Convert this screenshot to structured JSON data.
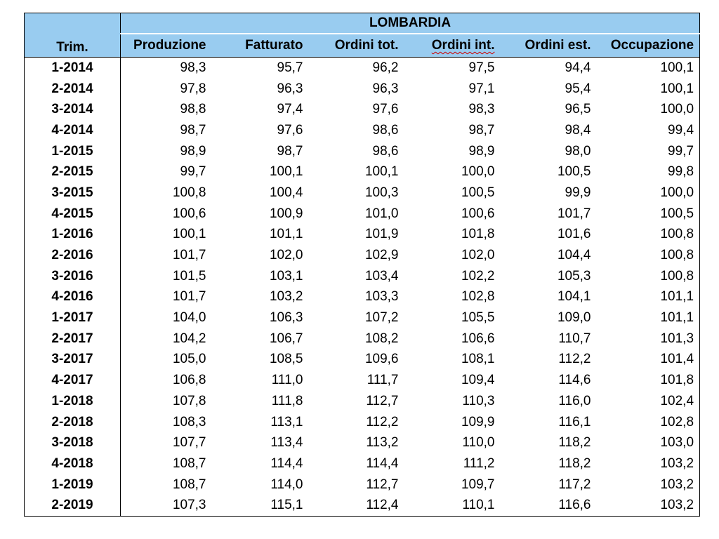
{
  "region": "LOMBARDIA",
  "columns": [
    "Trim.",
    "Produzione",
    "Fatturato",
    "Ordini tot.",
    "Ordini int.",
    "Ordini est.",
    "Occupazione"
  ],
  "rows": [
    [
      "1-2014",
      "98,3",
      "95,7",
      "96,2",
      "97,5",
      "94,4",
      "100,1"
    ],
    [
      "2-2014",
      "97,8",
      "96,3",
      "96,3",
      "97,1",
      "95,4",
      "100,1"
    ],
    [
      "3-2014",
      "98,8",
      "97,4",
      "97,6",
      "98,3",
      "96,5",
      "100,0"
    ],
    [
      "4-2014",
      "98,7",
      "97,6",
      "98,6",
      "98,7",
      "98,4",
      "99,4"
    ],
    [
      "1-2015",
      "98,9",
      "98,7",
      "98,6",
      "98,9",
      "98,0",
      "99,7"
    ],
    [
      "2-2015",
      "99,7",
      "100,1",
      "100,1",
      "100,0",
      "100,5",
      "99,8"
    ],
    [
      "3-2015",
      "100,8",
      "100,4",
      "100,3",
      "100,5",
      "99,9",
      "100,0"
    ],
    [
      "4-2015",
      "100,6",
      "100,9",
      "101,0",
      "100,6",
      "101,7",
      "100,5"
    ],
    [
      "1-2016",
      "100,1",
      "101,1",
      "101,9",
      "101,8",
      "101,6",
      "100,8"
    ],
    [
      "2-2016",
      "101,7",
      "102,0",
      "102,9",
      "102,0",
      "104,4",
      "100,8"
    ],
    [
      "3-2016",
      "101,5",
      "103,1",
      "103,4",
      "102,2",
      "105,3",
      "100,8"
    ],
    [
      "4-2016",
      "101,7",
      "103,2",
      "103,3",
      "102,8",
      "104,1",
      "101,1"
    ],
    [
      "1-2017",
      "104,0",
      "106,3",
      "107,2",
      "105,5",
      "109,0",
      "101,1"
    ],
    [
      "2-2017",
      "104,2",
      "106,7",
      "108,2",
      "106,6",
      "110,7",
      "101,3"
    ],
    [
      "3-2017",
      "105,0",
      "108,5",
      "109,6",
      "108,1",
      "112,2",
      "101,4"
    ],
    [
      "4-2017",
      "106,8",
      "111,0",
      "111,7",
      "109,4",
      "114,6",
      "101,8"
    ],
    [
      "1-2018",
      "107,8",
      "111,8",
      "112,7",
      "110,3",
      "116,0",
      "102,4"
    ],
    [
      "2-2018",
      "108,3",
      "113,1",
      "112,2",
      "109,9",
      "116,1",
      "102,8"
    ],
    [
      "3-2018",
      "107,7",
      "113,4",
      "113,2",
      "110,0",
      "118,2",
      "103,0"
    ],
    [
      "4-2018",
      "108,7",
      "114,4",
      "114,4",
      "111,2",
      "118,2",
      "103,2"
    ],
    [
      "1-2019",
      "108,7",
      "114,0",
      "112,7",
      "109,7",
      "117,2",
      "103,2"
    ],
    [
      "2-2019",
      "107,3",
      "115,1",
      "112,4",
      "110,1",
      "116,6",
      "103,2"
    ]
  ],
  "colors": {
    "header_bg": "#99ccf0",
    "border": "#000000",
    "spellcheck_underline": "#cc0000"
  }
}
